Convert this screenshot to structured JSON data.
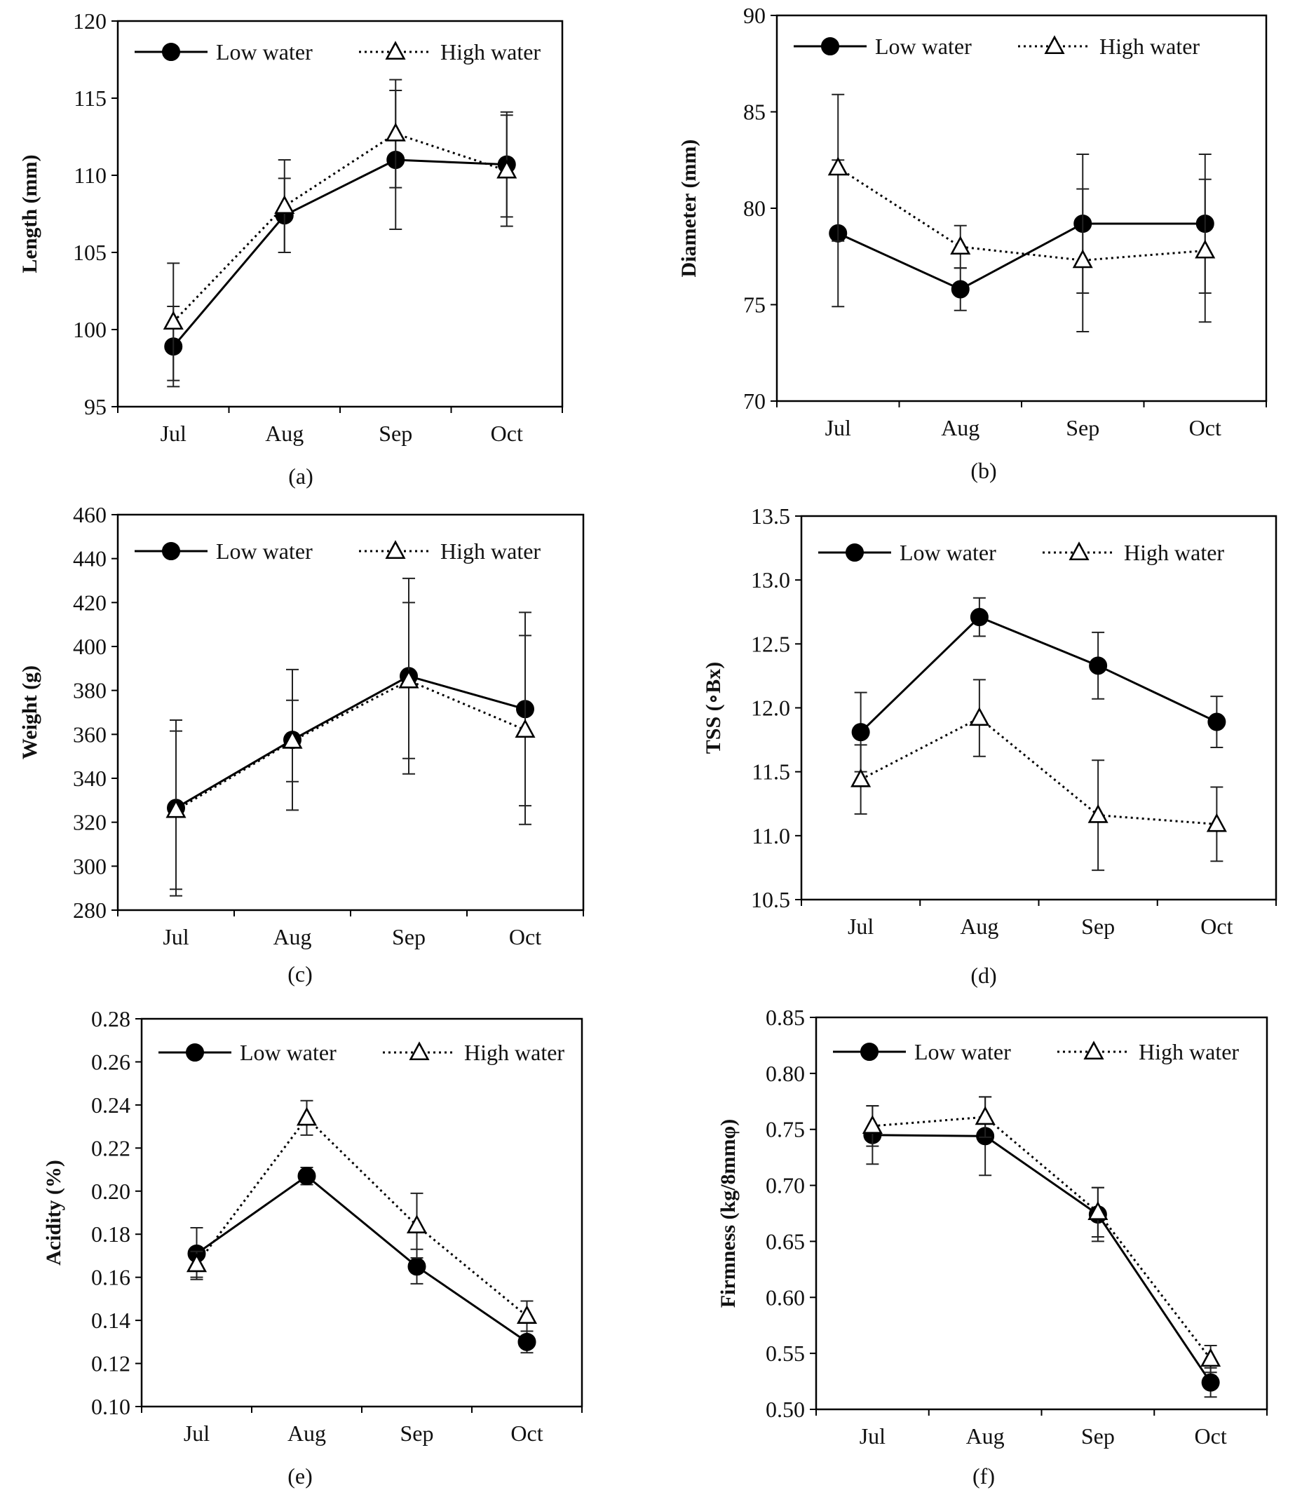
{
  "chart_data": [
    {
      "type": "line",
      "panel_label": "(a)",
      "title": "",
      "xlabel": "",
      "ylabel": "Length (mm)",
      "categories": [
        "Jul",
        "Aug",
        "Sep",
        "Oct"
      ],
      "ylim": [
        95,
        120
      ],
      "yticks": [
        95,
        100,
        105,
        110,
        115,
        120
      ],
      "tick_labels": [
        "95",
        "100",
        "105",
        "110",
        "115",
        "120"
      ],
      "grid": false,
      "legend": "top",
      "series": [
        {
          "name": "Low water",
          "marker": "filled-circle",
          "line": "solid",
          "values": [
            98.9,
            107.4,
            111.0,
            110.7
          ],
          "errors": [
            2.6,
            2.4,
            4.5,
            3.4
          ]
        },
        {
          "name": "High water",
          "marker": "open-triangle",
          "line": "dotted",
          "values": [
            100.5,
            108.0,
            112.7,
            110.3
          ],
          "errors": [
            3.8,
            3.0,
            3.5,
            3.6
          ]
        }
      ]
    },
    {
      "type": "line",
      "panel_label": "(b)",
      "title": "",
      "xlabel": "",
      "ylabel": "Diameter (mm)",
      "categories": [
        "Jul",
        "Aug",
        "Sep",
        "Oct"
      ],
      "ylim": [
        70,
        90
      ],
      "yticks": [
        70,
        75,
        80,
        85,
        90
      ],
      "tick_labels": [
        "70",
        "75",
        "80",
        "85",
        "90"
      ],
      "grid": false,
      "legend": "top",
      "series": [
        {
          "name": "Low water",
          "marker": "filled-circle",
          "line": "solid",
          "values": [
            78.7,
            75.8,
            79.2,
            79.2
          ],
          "errors": [
            3.8,
            1.1,
            3.6,
            3.6
          ]
        },
        {
          "name": "High water",
          "marker": "open-triangle",
          "line": "dotted",
          "values": [
            82.1,
            78.0,
            77.3,
            77.8
          ],
          "errors": [
            3.8,
            1.1,
            3.7,
            3.7
          ]
        }
      ]
    },
    {
      "type": "line",
      "panel_label": "(c)",
      "title": "",
      "xlabel": "",
      "ylabel": "Weight (g)",
      "categories": [
        "Jul",
        "Aug",
        "Sep",
        "Oct"
      ],
      "ylim": [
        280,
        460
      ],
      "yticks": [
        280,
        300,
        320,
        340,
        360,
        380,
        400,
        420,
        440,
        460
      ],
      "tick_labels": [
        "280",
        "300",
        "320",
        "340",
        "360",
        "380",
        "400",
        "420",
        "440",
        "460"
      ],
      "grid": false,
      "legend": "top",
      "series": [
        {
          "name": "Low water",
          "marker": "filled-circle",
          "line": "solid",
          "values": [
            326.5,
            357.5,
            386.5,
            371.5
          ],
          "errors": [
            40.0,
            32.0,
            44.5,
            44.0
          ]
        },
        {
          "name": "High water",
          "marker": "open-triangle",
          "line": "dotted",
          "values": [
            325.5,
            357.0,
            384.5,
            362.0
          ],
          "errors": [
            36.0,
            18.5,
            35.5,
            43.0
          ]
        }
      ]
    },
    {
      "type": "line",
      "panel_label": "(d)",
      "title": "",
      "xlabel": "",
      "ylabel": "TSS (∘Bx)",
      "categories": [
        "Jul",
        "Aug",
        "Sep",
        "Oct"
      ],
      "ylim": [
        10.5,
        13.5
      ],
      "yticks": [
        10.5,
        11.0,
        11.5,
        12.0,
        12.5,
        13.0,
        13.5
      ],
      "tick_labels": [
        "10.5",
        "11.0",
        "11.5",
        "12.0",
        "12.5",
        "13.0",
        "13.5"
      ],
      "grid": false,
      "legend": "top",
      "series": [
        {
          "name": "Low water",
          "marker": "filled-circle",
          "line": "solid",
          "values": [
            11.81,
            12.71,
            12.33,
            11.89
          ],
          "errors": [
            0.31,
            0.15,
            0.26,
            0.2
          ]
        },
        {
          "name": "High water",
          "marker": "open-triangle",
          "line": "dotted",
          "values": [
            11.44,
            11.92,
            11.16,
            11.09
          ],
          "errors": [
            0.27,
            0.3,
            0.43,
            0.29
          ]
        }
      ]
    },
    {
      "type": "line",
      "panel_label": "(e)",
      "title": "",
      "xlabel": "",
      "ylabel": "Acidity (%)",
      "categories": [
        "Jul",
        "Aug",
        "Sep",
        "Oct"
      ],
      "ylim": [
        0.1,
        0.28
      ],
      "yticks": [
        0.1,
        0.12,
        0.14,
        0.16,
        0.18,
        0.2,
        0.22,
        0.24,
        0.26,
        0.28
      ],
      "tick_labels": [
        "0.10",
        "0.12",
        "0.14",
        "0.16",
        "0.18",
        "0.20",
        "0.22",
        "0.24",
        "0.26",
        "0.28"
      ],
      "grid": false,
      "legend": "top",
      "series": [
        {
          "name": "Low water",
          "marker": "filled-circle",
          "line": "solid",
          "values": [
            0.171,
            0.207,
            0.165,
            0.13
          ],
          "errors": [
            0.012,
            0.004,
            0.008,
            0.005
          ]
        },
        {
          "name": "High water",
          "marker": "open-triangle",
          "line": "dotted",
          "values": [
            0.166,
            0.234,
            0.184,
            0.142
          ],
          "errors": [
            0.006,
            0.008,
            0.015,
            0.007
          ]
        }
      ]
    },
    {
      "type": "line",
      "panel_label": "(f)",
      "title": "",
      "xlabel": "",
      "ylabel": "Firmness (kg/8mmφ)",
      "categories": [
        "Jul",
        "Aug",
        "Sep",
        "Oct"
      ],
      "ylim": [
        0.5,
        0.85
      ],
      "yticks": [
        0.5,
        0.55,
        0.6,
        0.65,
        0.7,
        0.75,
        0.8,
        0.85
      ],
      "tick_labels": [
        "0.50",
        "0.55",
        "0.60",
        "0.65",
        "0.70",
        "0.75",
        "0.80",
        "0.85"
      ],
      "grid": false,
      "legend": "top",
      "series": [
        {
          "name": "Low water",
          "marker": "filled-circle",
          "line": "solid",
          "values": [
            0.745,
            0.744,
            0.674,
            0.524
          ],
          "errors": [
            0.026,
            0.035,
            0.024,
            0.013
          ]
        },
        {
          "name": "High water",
          "marker": "open-triangle",
          "line": "dotted",
          "values": [
            0.753,
            0.761,
            0.676,
            0.545
          ],
          "errors": [
            0.018,
            0.018,
            0.022,
            0.012
          ]
        }
      ]
    }
  ]
}
